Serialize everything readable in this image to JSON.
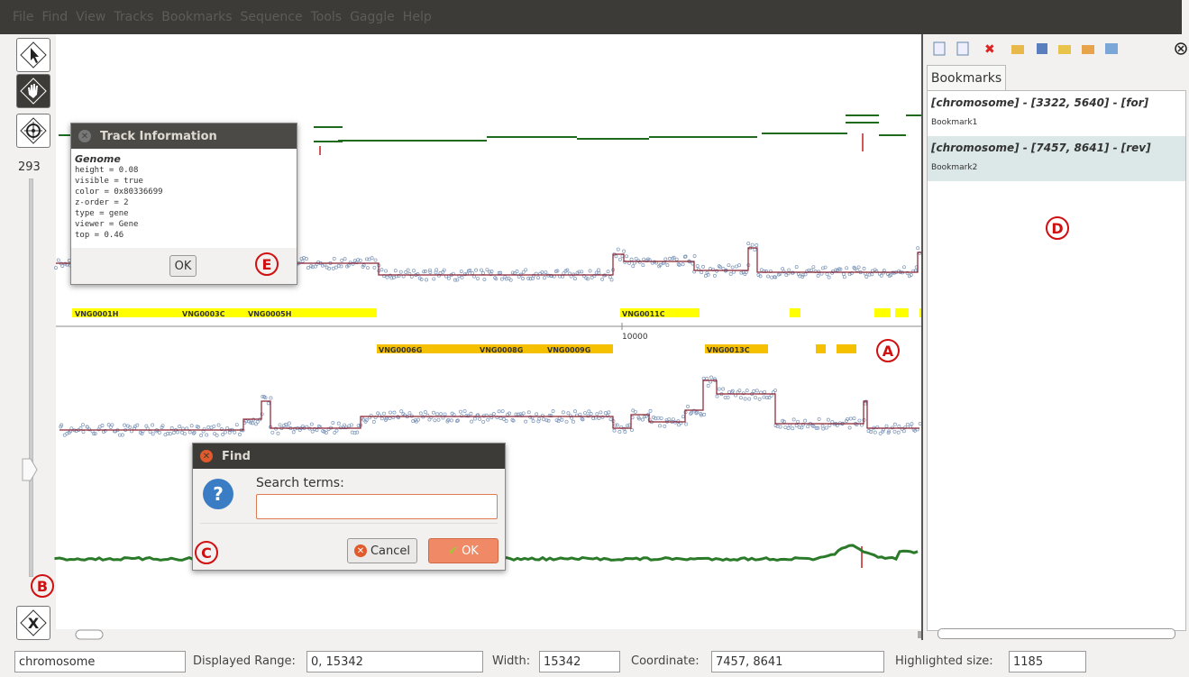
{
  "menu": [
    "File",
    "Find",
    "View",
    "Tracks",
    "Bookmarks",
    "Sequence",
    "Tools",
    "Gaggle",
    "Help"
  ],
  "zoom": "293",
  "track_info": {
    "title": "Track Information",
    "track": "Genome",
    "properties": [
      "height = 0.08",
      "visible = true",
      "color = 0x80336699",
      "z-order = 2",
      "type = gene",
      "viewer = Gene",
      "top = 0.46"
    ],
    "ok": "OK"
  },
  "genes": {
    "forward": [
      "VNG0001H",
      "VNG0003C",
      "VNG0005H",
      "VNG0011C"
    ],
    "reverse": [
      "VNG0006G",
      "VNG0008G",
      "VNG0009G",
      "VNG0013C"
    ]
  },
  "axis_tick": "10000",
  "find_dialog": {
    "title": "Find",
    "prompt": "Search terms:",
    "cancel": "Cancel",
    "ok": "OK"
  },
  "bookmarks": {
    "tab": "Bookmarks",
    "items": [
      {
        "range": "[chromosome] - [3322, 5640] - [for]",
        "name": "Bookmark1"
      },
      {
        "range": "[chromosome] - [7457, 8641] - [rev]",
        "name": "Bookmark2"
      }
    ]
  },
  "status": {
    "chromosome": "chromosome",
    "range_label": "Displayed Range:",
    "range": "0, 15342",
    "width_label": "Width:",
    "width": "15342",
    "coordinate_label": "Coordinate:",
    "coordinate": "7457, 8641",
    "highlighted_label": "Highlighted size:",
    "highlighted": "1185"
  },
  "annotations": [
    "A",
    "B",
    "C",
    "D",
    "E"
  ]
}
